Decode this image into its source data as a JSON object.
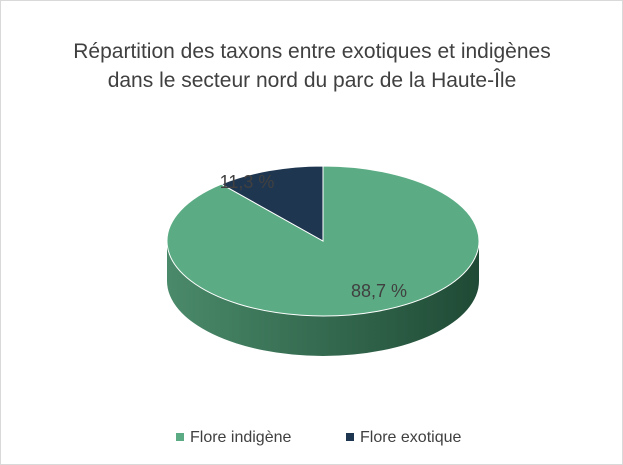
{
  "chart_data": {
    "type": "pie",
    "title": "Répartition des taxons entre exotiques et indigènes dans le secteur nord du parc de la Haute-Île",
    "categories": [
      "Flore indigène",
      "Flore exotique"
    ],
    "values": [
      88.7,
      11.3
    ],
    "value_labels": [
      "88,7 %",
      "11,3 %"
    ],
    "colors": [
      "#5bac84",
      "#1f3650"
    ],
    "legend": "bottom"
  }
}
